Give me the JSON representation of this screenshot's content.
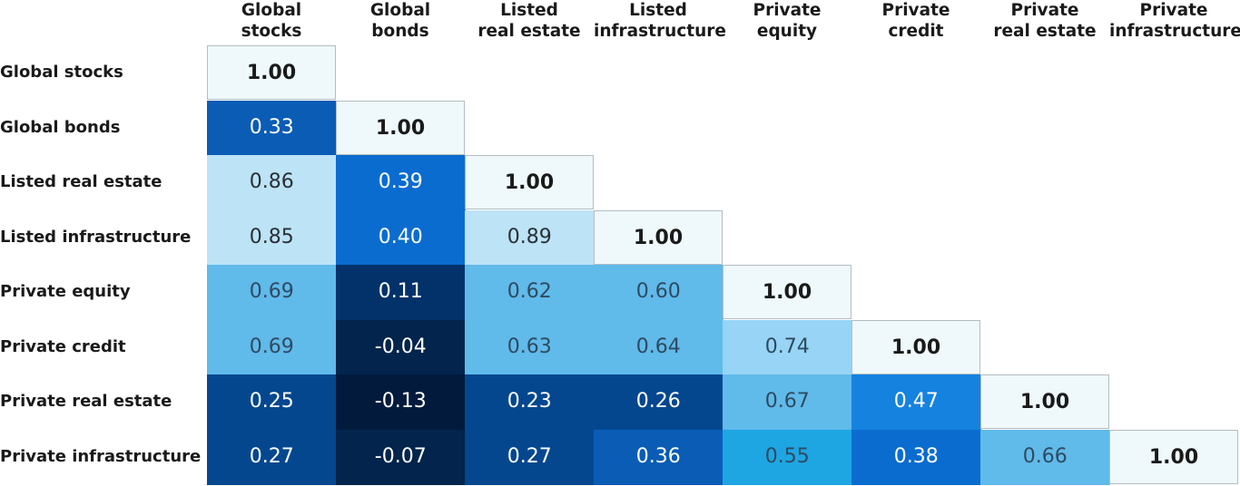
{
  "chart_data": {
    "type": "heatmap",
    "columns": [
      [
        "Global",
        "stocks"
      ],
      [
        "Global",
        "bonds"
      ],
      [
        "Listed",
        "real estate"
      ],
      [
        "Listed",
        "infrastructure"
      ],
      [
        "Private",
        "equity"
      ],
      [
        "Private",
        "credit"
      ],
      [
        "Private",
        "real estate"
      ],
      [
        "Private",
        "infrastructure"
      ]
    ],
    "rows": [
      "Global stocks",
      "Global bonds",
      "Listed real estate",
      "Listed infrastructure",
      "Private equity",
      "Private credit",
      "Private real estate",
      "Private infrastructure"
    ],
    "values": [
      [
        "1.00"
      ],
      [
        "0.33",
        "1.00"
      ],
      [
        "0.86",
        "0.39",
        "1.00"
      ],
      [
        "0.85",
        "0.40",
        "0.89",
        "1.00"
      ],
      [
        "0.69",
        "0.11",
        "0.62",
        "0.60",
        "1.00"
      ],
      [
        "0.69",
        "-0.04",
        "0.63",
        "0.64",
        "0.74",
        "1.00"
      ],
      [
        "0.25",
        "-0.13",
        "0.23",
        "0.26",
        "0.67",
        "0.47",
        "1.00"
      ],
      [
        "0.27",
        "-0.07",
        "0.27",
        "0.36",
        "0.55",
        "0.38",
        "0.66",
        "1.00"
      ]
    ],
    "diagonal_color": "#eff9fc",
    "color_scale": [
      {
        "min": -1.0,
        "color": "#021b3c"
      },
      {
        "min": -0.1,
        "color": "#03244c"
      },
      {
        "min": 0.0,
        "color": "#03326a"
      },
      {
        "min": 0.2,
        "color": "#05478f"
      },
      {
        "min": 0.3,
        "color": "#0a5cb5"
      },
      {
        "min": 0.37,
        "color": "#0b6cd0"
      },
      {
        "min": 0.45,
        "color": "#1682e0"
      },
      {
        "min": 0.5,
        "color": "#1ea6e3"
      },
      {
        "min": 0.58,
        "color": "#60baea"
      },
      {
        "min": 0.72,
        "color": "#97d4f5"
      },
      {
        "min": 0.8,
        "color": "#bde3f6"
      }
    ]
  }
}
